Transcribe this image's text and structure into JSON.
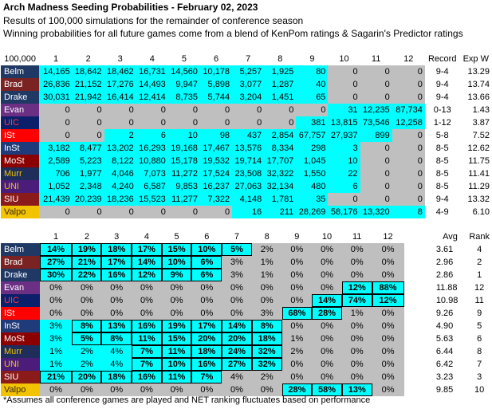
{
  "header": {
    "title": "Arch Madness Seeding Probabilities - February 02, 2023",
    "line1": "Results of 100,000 simulations for the remainder of conference season",
    "line2": "Winning probabilities for all future games come from a blend of KenPom ratings & Sagarin's Predictor ratings"
  },
  "colors": {
    "cyan": "#00ffff",
    "gray": "#bfbfbf",
    "navy": "#1f3864",
    "maroon": "#7b2323"
  },
  "teams": [
    {
      "name": "Belm",
      "bg": "#1f3864",
      "fg": "#ffffff"
    },
    {
      "name": "Brad",
      "bg": "#7b2323",
      "fg": "#ffffff"
    },
    {
      "name": "Drake",
      "bg": "#1f3864",
      "fg": "#ffffff"
    },
    {
      "name": "Evan",
      "bg": "#6b2f84",
      "fg": "#ffffff"
    },
    {
      "name": "UIC",
      "bg": "#0b1f6b",
      "fg": "#ff3b3b"
    },
    {
      "name": "ISt",
      "bg": "#ff0000",
      "fg": "#ffffff"
    },
    {
      "name": "InSt",
      "bg": "#1f3b7a",
      "fg": "#ffffff"
    },
    {
      "name": "MoSt",
      "bg": "#8b0000",
      "fg": "#ffffff"
    },
    {
      "name": "Murr",
      "bg": "#1f2d5a",
      "fg": "#f2c300"
    },
    {
      "name": "UNI",
      "bg": "#4b1c7a",
      "fg": "#f2c300"
    },
    {
      "name": "SIU",
      "bg": "#8b1a1a",
      "fg": "#ffffff"
    },
    {
      "name": "Valpo",
      "bg": "#f2c300",
      "fg": "#3b2412"
    }
  ],
  "counts": {
    "corner": "100,000",
    "columns": [
      "1",
      "2",
      "3",
      "4",
      "5",
      "6",
      "7",
      "8",
      "9",
      "10",
      "11",
      "12"
    ],
    "col_record": "Record",
    "col_expw": "Exp W",
    "rows": [
      {
        "cells": [
          "14,165",
          "18,642",
          "18,462",
          "16,731",
          "14,560",
          "10,178",
          "5,257",
          "1,925",
          "80",
          "0",
          "0",
          "0"
        ],
        "bg": [
          "c",
          "c",
          "c",
          "c",
          "c",
          "c",
          "c",
          "c",
          "c",
          "g",
          "g",
          "g"
        ],
        "record": "9-4",
        "expw": "13.29"
      },
      {
        "cells": [
          "26,836",
          "21,152",
          "17,276",
          "14,493",
          "9,947",
          "5,898",
          "3,077",
          "1,287",
          "40",
          "0",
          "0",
          "0"
        ],
        "bg": [
          "c",
          "c",
          "c",
          "c",
          "c",
          "c",
          "c",
          "c",
          "c",
          "g",
          "g",
          "g"
        ],
        "record": "9-4",
        "expw": "13.74"
      },
      {
        "cells": [
          "30,031",
          "21,942",
          "16,414",
          "12,414",
          "8,735",
          "5,744",
          "3,204",
          "1,451",
          "65",
          "0",
          "0",
          "0"
        ],
        "bg": [
          "c",
          "c",
          "c",
          "c",
          "c",
          "c",
          "c",
          "c",
          "c",
          "g",
          "g",
          "g"
        ],
        "record": "9-4",
        "expw": "13.66"
      },
      {
        "cells": [
          "0",
          "0",
          "0",
          "0",
          "0",
          "0",
          "0",
          "0",
          "0",
          "31",
          "12,235",
          "87,734"
        ],
        "bg": [
          "g",
          "g",
          "g",
          "g",
          "g",
          "g",
          "g",
          "g",
          "g",
          "c",
          "c",
          "c"
        ],
        "record": "0-13",
        "expw": "1.43"
      },
      {
        "cells": [
          "0",
          "0",
          "0",
          "0",
          "0",
          "0",
          "0",
          "0",
          "381",
          "13,815",
          "73,546",
          "12,258"
        ],
        "bg": [
          "g",
          "g",
          "g",
          "g",
          "g",
          "g",
          "g",
          "g",
          "c",
          "c",
          "c",
          "c"
        ],
        "record": "1-12",
        "expw": "3.87"
      },
      {
        "cells": [
          "0",
          "0",
          "2",
          "6",
          "10",
          "98",
          "437",
          "2,854",
          "67,757",
          "27,937",
          "899",
          "0"
        ],
        "bg": [
          "g",
          "g",
          "c",
          "c",
          "c",
          "c",
          "c",
          "c",
          "c",
          "c",
          "c",
          "g"
        ],
        "record": "5-8",
        "expw": "7.52"
      },
      {
        "cells": [
          "3,182",
          "8,477",
          "13,202",
          "16,293",
          "19,168",
          "17,467",
          "13,576",
          "8,334",
          "298",
          "3",
          "0",
          "0"
        ],
        "bg": [
          "c",
          "c",
          "c",
          "c",
          "c",
          "c",
          "c",
          "c",
          "c",
          "c",
          "g",
          "g"
        ],
        "record": "8-5",
        "expw": "12.62"
      },
      {
        "cells": [
          "2,589",
          "5,223",
          "8,122",
          "10,880",
          "15,178",
          "19,532",
          "19,714",
          "17,707",
          "1,045",
          "10",
          "0",
          "0"
        ],
        "bg": [
          "c",
          "c",
          "c",
          "c",
          "c",
          "c",
          "c",
          "c",
          "c",
          "c",
          "g",
          "g"
        ],
        "record": "8-5",
        "expw": "11.75"
      },
      {
        "cells": [
          "706",
          "1,977",
          "4,046",
          "7,073",
          "11,272",
          "17,524",
          "23,508",
          "32,322",
          "1,550",
          "22",
          "0",
          "0"
        ],
        "bg": [
          "c",
          "c",
          "c",
          "c",
          "c",
          "c",
          "c",
          "c",
          "c",
          "c",
          "g",
          "g"
        ],
        "record": "8-5",
        "expw": "11.41"
      },
      {
        "cells": [
          "1,052",
          "2,348",
          "4,240",
          "6,587",
          "9,853",
          "16,237",
          "27,063",
          "32,134",
          "480",
          "6",
          "0",
          "0"
        ],
        "bg": [
          "c",
          "c",
          "c",
          "c",
          "c",
          "c",
          "c",
          "c",
          "c",
          "c",
          "g",
          "g"
        ],
        "record": "8-5",
        "expw": "11.29"
      },
      {
        "cells": [
          "21,439",
          "20,239",
          "18,236",
          "15,523",
          "11,277",
          "7,322",
          "4,148",
          "1,781",
          "35",
          "0",
          "0",
          "0"
        ],
        "bg": [
          "c",
          "c",
          "c",
          "c",
          "c",
          "c",
          "c",
          "c",
          "c",
          "g",
          "g",
          "g"
        ],
        "record": "9-4",
        "expw": "13.32"
      },
      {
        "cells": [
          "0",
          "0",
          "0",
          "0",
          "0",
          "0",
          "16",
          "211",
          "28,269",
          "58,176",
          "13,320",
          "8"
        ],
        "bg": [
          "g",
          "g",
          "g",
          "g",
          "g",
          "g",
          "c",
          "c",
          "c",
          "c",
          "c",
          "c"
        ],
        "record": "4-9",
        "expw": "6.10"
      }
    ]
  },
  "percents": {
    "columns": [
      "1",
      "2",
      "3",
      "4",
      "5",
      "6",
      "7",
      "8",
      "9",
      "10",
      "11",
      "12"
    ],
    "col_avg": "Avg",
    "col_rank": "Rank",
    "rows": [
      {
        "cells": [
          "14%",
          "19%",
          "18%",
          "17%",
          "15%",
          "10%",
          "5%",
          "2%",
          "0%",
          "0%",
          "0%",
          "0%"
        ],
        "bg": [
          "c",
          "c",
          "c",
          "c",
          "c",
          "c",
          "c",
          "g",
          "g",
          "g",
          "g",
          "g"
        ],
        "bold": [
          1,
          1,
          1,
          1,
          1,
          1,
          1,
          0,
          0,
          0,
          0,
          0
        ],
        "avg": "3.61",
        "rank": "4"
      },
      {
        "cells": [
          "27%",
          "21%",
          "17%",
          "14%",
          "10%",
          "6%",
          "3%",
          "1%",
          "0%",
          "0%",
          "0%",
          "0%"
        ],
        "bg": [
          "c",
          "c",
          "c",
          "c",
          "c",
          "c",
          "g",
          "g",
          "g",
          "g",
          "g",
          "g"
        ],
        "bold": [
          1,
          1,
          1,
          1,
          1,
          1,
          0,
          0,
          0,
          0,
          0,
          0
        ],
        "avg": "2.96",
        "rank": "2"
      },
      {
        "cells": [
          "30%",
          "22%",
          "16%",
          "12%",
          "9%",
          "6%",
          "3%",
          "1%",
          "0%",
          "0%",
          "0%",
          "0%"
        ],
        "bg": [
          "c",
          "c",
          "c",
          "c",
          "c",
          "c",
          "g",
          "g",
          "g",
          "g",
          "g",
          "g"
        ],
        "bold": [
          1,
          1,
          1,
          1,
          1,
          1,
          0,
          0,
          0,
          0,
          0,
          0
        ],
        "avg": "2.86",
        "rank": "1"
      },
      {
        "cells": [
          "0%",
          "0%",
          "0%",
          "0%",
          "0%",
          "0%",
          "0%",
          "0%",
          "0%",
          "0%",
          "12%",
          "88%"
        ],
        "bg": [
          "g",
          "g",
          "g",
          "g",
          "g",
          "g",
          "g",
          "g",
          "g",
          "g",
          "c",
          "c"
        ],
        "bold": [
          0,
          0,
          0,
          0,
          0,
          0,
          0,
          0,
          0,
          0,
          1,
          1
        ],
        "avg": "11.88",
        "rank": "12"
      },
      {
        "cells": [
          "0%",
          "0%",
          "0%",
          "0%",
          "0%",
          "0%",
          "0%",
          "0%",
          "0%",
          "14%",
          "74%",
          "12%"
        ],
        "bg": [
          "g",
          "g",
          "g",
          "g",
          "g",
          "g",
          "g",
          "g",
          "g",
          "c",
          "c",
          "c"
        ],
        "bold": [
          0,
          0,
          0,
          0,
          0,
          0,
          0,
          0,
          0,
          1,
          1,
          1
        ],
        "avg": "10.98",
        "rank": "11"
      },
      {
        "cells": [
          "0%",
          "0%",
          "0%",
          "0%",
          "0%",
          "0%",
          "0%",
          "3%",
          "68%",
          "28%",
          "1%",
          "0%"
        ],
        "bg": [
          "g",
          "g",
          "g",
          "g",
          "g",
          "g",
          "g",
          "g",
          "c",
          "c",
          "g",
          "g"
        ],
        "bold": [
          0,
          0,
          0,
          0,
          0,
          0,
          0,
          0,
          1,
          1,
          0,
          0
        ],
        "avg": "9.26",
        "rank": "9"
      },
      {
        "cells": [
          "3%",
          "8%",
          "13%",
          "16%",
          "19%",
          "17%",
          "14%",
          "8%",
          "0%",
          "0%",
          "0%",
          "0%"
        ],
        "bg": [
          "c",
          "c",
          "c",
          "c",
          "c",
          "c",
          "c",
          "c",
          "g",
          "g",
          "g",
          "g"
        ],
        "bold": [
          0,
          1,
          1,
          1,
          1,
          1,
          1,
          1,
          0,
          0,
          0,
          0
        ],
        "avg": "4.90",
        "rank": "5"
      },
      {
        "cells": [
          "3%",
          "5%",
          "8%",
          "11%",
          "15%",
          "20%",
          "20%",
          "18%",
          "1%",
          "0%",
          "0%",
          "0%"
        ],
        "bg": [
          "c",
          "c",
          "c",
          "c",
          "c",
          "c",
          "c",
          "c",
          "g",
          "g",
          "g",
          "g"
        ],
        "bold": [
          0,
          1,
          1,
          1,
          1,
          1,
          1,
          1,
          0,
          0,
          0,
          0
        ],
        "avg": "5.63",
        "rank": "6"
      },
      {
        "cells": [
          "1%",
          "2%",
          "4%",
          "7%",
          "11%",
          "18%",
          "24%",
          "32%",
          "2%",
          "0%",
          "0%",
          "0%"
        ],
        "bg": [
          "c",
          "c",
          "c",
          "c",
          "c",
          "c",
          "c",
          "c",
          "g",
          "g",
          "g",
          "g"
        ],
        "bold": [
          0,
          0,
          0,
          1,
          1,
          1,
          1,
          1,
          0,
          0,
          0,
          0
        ],
        "avg": "6.44",
        "rank": "8"
      },
      {
        "cells": [
          "1%",
          "2%",
          "4%",
          "7%",
          "10%",
          "16%",
          "27%",
          "32%",
          "0%",
          "0%",
          "0%",
          "0%"
        ],
        "bg": [
          "c",
          "c",
          "c",
          "c",
          "c",
          "c",
          "c",
          "c",
          "g",
          "g",
          "g",
          "g"
        ],
        "bold": [
          0,
          0,
          0,
          1,
          1,
          1,
          1,
          1,
          0,
          0,
          0,
          0
        ],
        "avg": "6.42",
        "rank": "7"
      },
      {
        "cells": [
          "21%",
          "20%",
          "18%",
          "16%",
          "11%",
          "7%",
          "4%",
          "2%",
          "0%",
          "0%",
          "0%",
          "0%"
        ],
        "bg": [
          "c",
          "c",
          "c",
          "c",
          "c",
          "c",
          "g",
          "g",
          "g",
          "g",
          "g",
          "g"
        ],
        "bold": [
          1,
          1,
          1,
          1,
          1,
          1,
          0,
          0,
          0,
          0,
          0,
          0
        ],
        "avg": "3.23",
        "rank": "3"
      },
      {
        "cells": [
          "0%",
          "0%",
          "0%",
          "0%",
          "0%",
          "0%",
          "0%",
          "0%",
          "28%",
          "58%",
          "13%",
          "0%"
        ],
        "bg": [
          "g",
          "g",
          "g",
          "g",
          "g",
          "g",
          "g",
          "g",
          "c",
          "c",
          "c",
          "g"
        ],
        "bold": [
          0,
          0,
          0,
          0,
          0,
          0,
          0,
          0,
          1,
          1,
          1,
          0
        ],
        "avg": "9.85",
        "rank": "10"
      }
    ]
  },
  "footnote": "*Assumes all conference games are played and NET ranking fluctuates based on performance"
}
